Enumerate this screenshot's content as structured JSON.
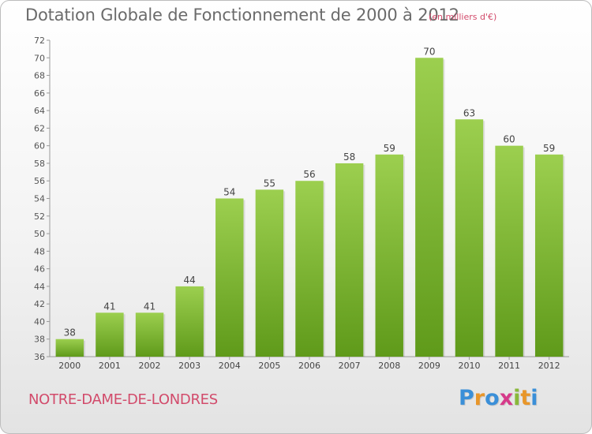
{
  "chart_data": {
    "type": "bar",
    "title": "Dotation Globale de Fonctionnement de 2000 à 2012",
    "unit_note": "(en milliers d'€)",
    "categories": [
      "2000",
      "2001",
      "2002",
      "2003",
      "2004",
      "2005",
      "2006",
      "2007",
      "2008",
      "2009",
      "2010",
      "2011",
      "2012"
    ],
    "values": [
      38,
      41,
      41,
      44,
      54,
      55,
      56,
      58,
      59,
      70,
      63,
      60,
      59
    ],
    "ylim": [
      36,
      72
    ],
    "yticks": [
      36,
      38,
      40,
      42,
      44,
      46,
      48,
      50,
      52,
      54,
      56,
      58,
      60,
      62,
      64,
      66,
      68,
      70,
      72
    ],
    "grid": false,
    "bar_color_top": "#9ccf4f",
    "bar_color_bottom": "#5f9a1a"
  },
  "footer": {
    "commune": "NOTRE-DAME-DE-LONDRES",
    "logo": "Proxiti"
  }
}
